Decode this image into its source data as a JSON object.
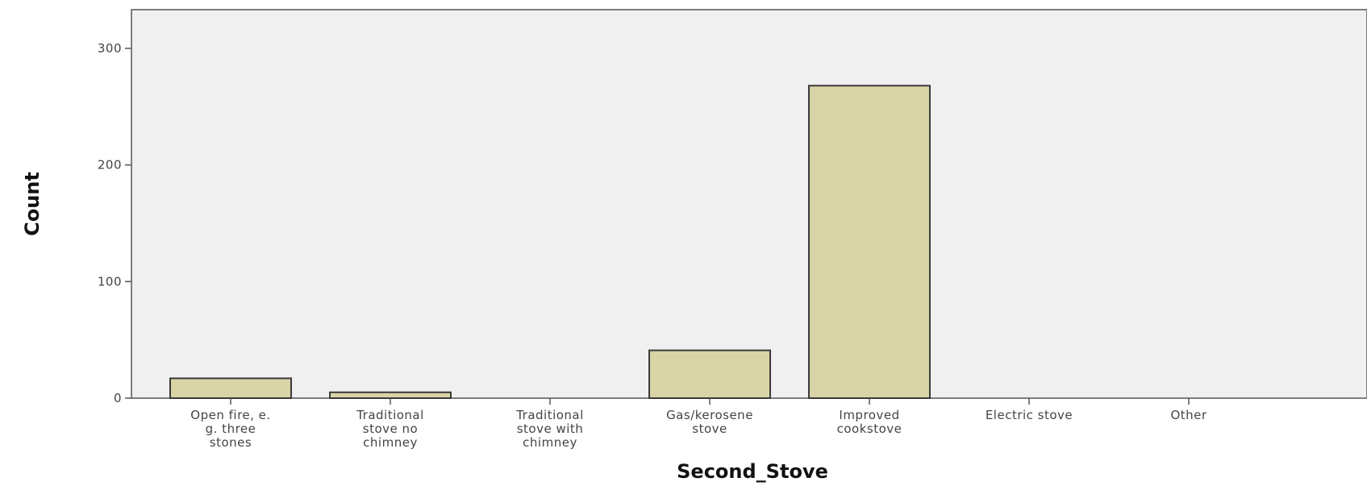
{
  "chart_data": {
    "type": "bar",
    "title": "",
    "xlabel": "Second_Stove",
    "ylabel": "Count",
    "categories": [
      [
        "Open fire, e.",
        "g. three",
        "stones"
      ],
      [
        "Traditional",
        "stove no",
        "chimney"
      ],
      [
        "Traditional",
        "stove with",
        "chimney"
      ],
      [
        "Gas/kerosene",
        "stove"
      ],
      [
        "Improved",
        "cookstove"
      ],
      [
        "Electric stove"
      ],
      [
        "Other"
      ]
    ],
    "values": [
      17,
      5,
      0,
      41,
      268,
      0,
      0
    ],
    "ylim": [
      0,
      330
    ],
    "yticks": [
      "0",
      "100",
      "200",
      "300"
    ],
    "grid": false,
    "legend": "none",
    "colors": {
      "plot_background": "#f0f0f0",
      "bar_fill": "#d9d4a6",
      "bar_stroke": "#3a3a3a",
      "axis": "#555555"
    }
  }
}
